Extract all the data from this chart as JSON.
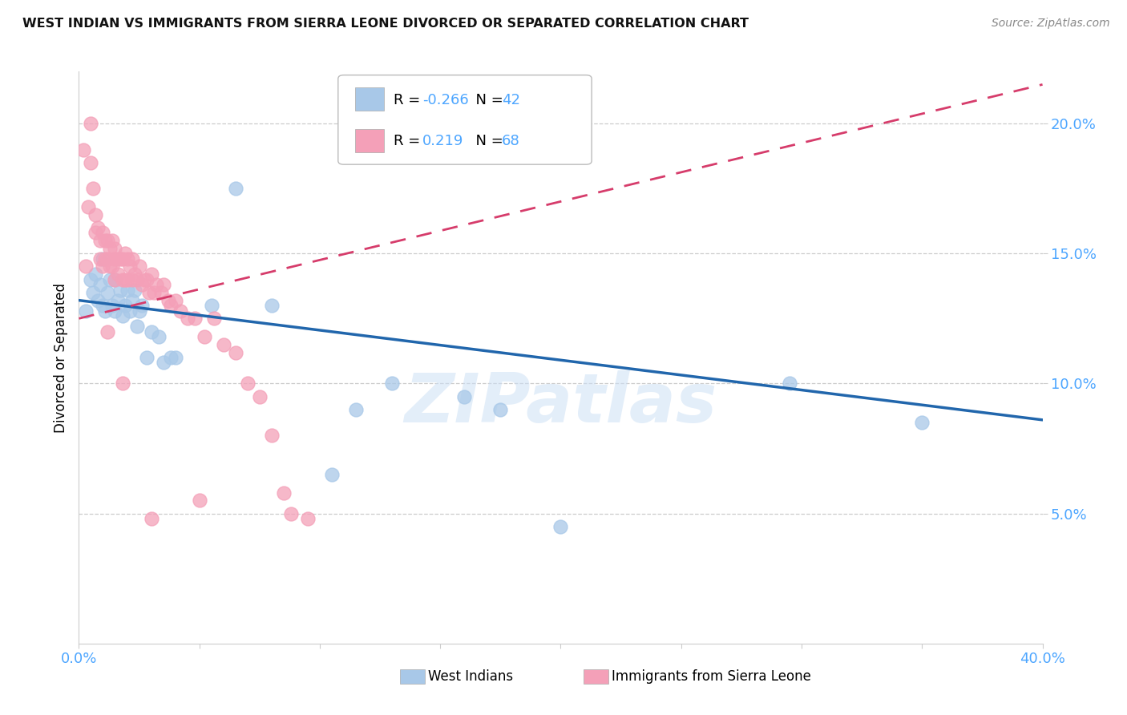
{
  "title": "WEST INDIAN VS IMMIGRANTS FROM SIERRA LEONE DIVORCED OR SEPARATED CORRELATION CHART",
  "source": "Source: ZipAtlas.com",
  "ylabel": "Divorced or Separated",
  "watermark": "ZIPatlas",
  "legend_blue_R": "-0.266",
  "legend_blue_N": "42",
  "legend_pink_R": "0.219",
  "legend_pink_N": "68",
  "blue_color": "#a8c8e8",
  "pink_color": "#f4a0b8",
  "blue_line_color": "#2166ac",
  "pink_line_color": "#d63c6b",
  "axis_color": "#4da6ff",
  "grid_color": "#cccccc",
  "xlim": [
    0.0,
    0.4
  ],
  "ylim": [
    0.0,
    0.22
  ],
  "ytick_positions": [
    0.05,
    0.1,
    0.15,
    0.2
  ],
  "ytick_labels": [
    "5.0%",
    "10.0%",
    "15.0%",
    "20.0%"
  ],
  "blue_x": [
    0.003,
    0.005,
    0.006,
    0.007,
    0.008,
    0.009,
    0.01,
    0.01,
    0.011,
    0.012,
    0.013,
    0.014,
    0.015,
    0.015,
    0.016,
    0.017,
    0.018,
    0.019,
    0.02,
    0.021,
    0.022,
    0.023,
    0.024,
    0.025,
    0.026,
    0.028,
    0.03,
    0.033,
    0.035,
    0.038,
    0.04,
    0.055,
    0.065,
    0.08,
    0.105,
    0.115,
    0.13,
    0.16,
    0.175,
    0.2,
    0.295,
    0.35
  ],
  "blue_y": [
    0.128,
    0.14,
    0.135,
    0.142,
    0.132,
    0.138,
    0.13,
    0.148,
    0.128,
    0.135,
    0.14,
    0.13,
    0.14,
    0.128,
    0.132,
    0.136,
    0.126,
    0.13,
    0.136,
    0.128,
    0.132,
    0.136,
    0.122,
    0.128,
    0.13,
    0.11,
    0.12,
    0.118,
    0.108,
    0.11,
    0.11,
    0.13,
    0.175,
    0.13,
    0.065,
    0.09,
    0.1,
    0.095,
    0.09,
    0.045,
    0.1,
    0.085
  ],
  "pink_x": [
    0.002,
    0.003,
    0.004,
    0.005,
    0.005,
    0.006,
    0.007,
    0.007,
    0.008,
    0.009,
    0.009,
    0.01,
    0.01,
    0.011,
    0.011,
    0.012,
    0.012,
    0.013,
    0.013,
    0.014,
    0.014,
    0.015,
    0.015,
    0.015,
    0.016,
    0.016,
    0.017,
    0.018,
    0.018,
    0.019,
    0.019,
    0.02,
    0.02,
    0.021,
    0.022,
    0.022,
    0.023,
    0.024,
    0.025,
    0.026,
    0.027,
    0.028,
    0.029,
    0.03,
    0.031,
    0.032,
    0.034,
    0.035,
    0.037,
    0.038,
    0.04,
    0.042,
    0.045,
    0.048,
    0.052,
    0.056,
    0.06,
    0.065,
    0.07,
    0.075,
    0.08,
    0.085,
    0.088,
    0.095,
    0.012,
    0.018,
    0.05,
    0.03
  ],
  "pink_y": [
    0.19,
    0.145,
    0.168,
    0.2,
    0.185,
    0.175,
    0.165,
    0.158,
    0.16,
    0.155,
    0.148,
    0.158,
    0.145,
    0.155,
    0.148,
    0.155,
    0.148,
    0.152,
    0.145,
    0.155,
    0.145,
    0.152,
    0.148,
    0.14,
    0.148,
    0.142,
    0.148,
    0.148,
    0.14,
    0.15,
    0.14,
    0.148,
    0.14,
    0.145,
    0.148,
    0.14,
    0.142,
    0.14,
    0.145,
    0.138,
    0.14,
    0.14,
    0.135,
    0.142,
    0.135,
    0.138,
    0.135,
    0.138,
    0.132,
    0.13,
    0.132,
    0.128,
    0.125,
    0.125,
    0.118,
    0.125,
    0.115,
    0.112,
    0.1,
    0.095,
    0.08,
    0.058,
    0.05,
    0.048,
    0.12,
    0.1,
    0.055,
    0.048
  ],
  "blue_line_x0": 0.0,
  "blue_line_x1": 0.4,
  "blue_line_y0": 0.132,
  "blue_line_y1": 0.086,
  "pink_line_x0": 0.0,
  "pink_line_x1": 0.4,
  "pink_line_y0": 0.125,
  "pink_line_y1": 0.215
}
